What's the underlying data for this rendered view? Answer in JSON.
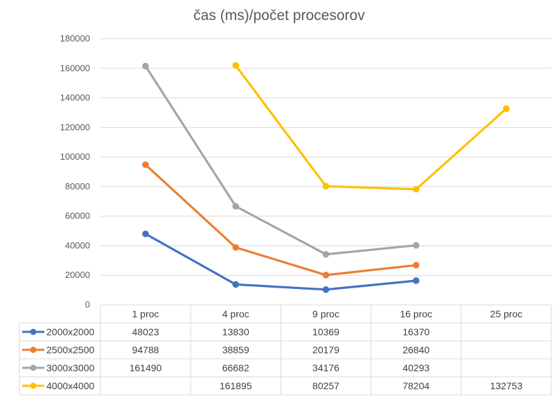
{
  "chart_data": {
    "type": "line",
    "title": "čas (ms)/počet procesorov",
    "xlabel": "",
    "ylabel": "",
    "categories": [
      "1 proc",
      "4 proc",
      "9 proc",
      "16 proc",
      "25 proc"
    ],
    "ylim": [
      0,
      180000
    ],
    "yticks": [
      0,
      20000,
      40000,
      60000,
      80000,
      100000,
      120000,
      140000,
      160000,
      180000
    ],
    "grid": true,
    "legend": "data-table",
    "series": [
      {
        "name": "2000x2000",
        "color": "#4472C4",
        "values": [
          48023,
          13830,
          10369,
          16370,
          null
        ]
      },
      {
        "name": "2500x2500",
        "color": "#ED7D31",
        "values": [
          94788,
          38859,
          20179,
          26840,
          null
        ]
      },
      {
        "name": "3000x3000",
        "color": "#A5A5A5",
        "values": [
          161490,
          66682,
          34176,
          40293,
          null
        ]
      },
      {
        "name": "4000x4000",
        "color": "#FFC000",
        "values": [
          null,
          161895,
          80257,
          78204,
          132753
        ]
      }
    ]
  }
}
